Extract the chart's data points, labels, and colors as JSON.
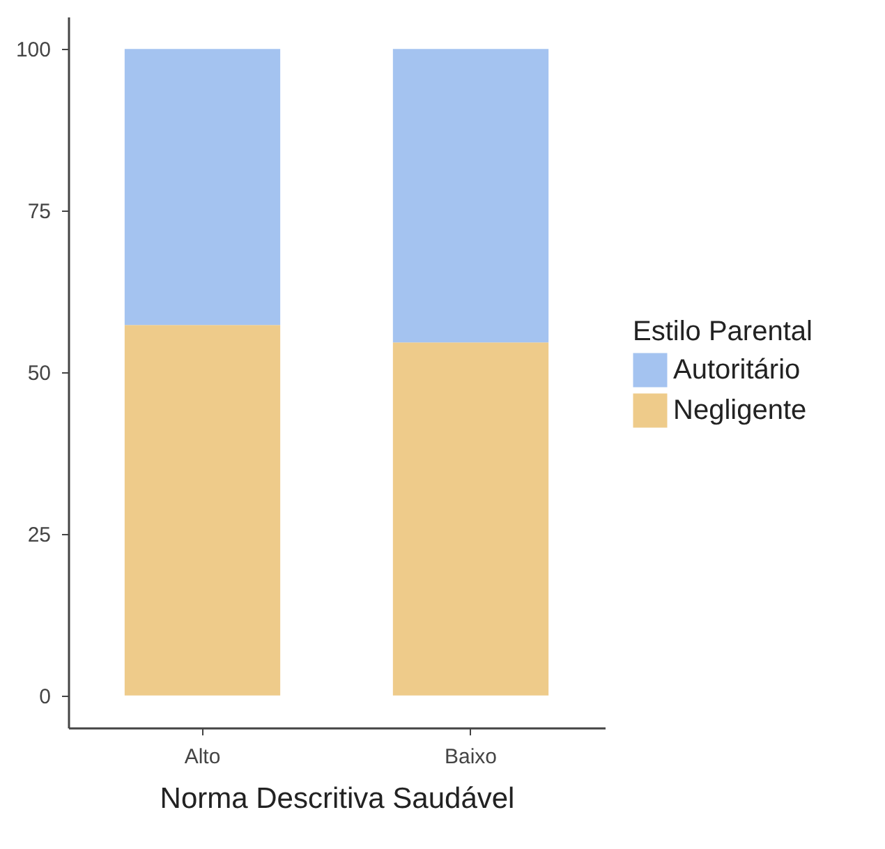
{
  "chart_data": {
    "type": "bar",
    "stacked": true,
    "xlabel": "Norma Descritiva Saudável",
    "legend_title": "Estilo Parental",
    "legend": "right",
    "categories": [
      "Alto",
      "Baixo"
    ],
    "series": [
      {
        "name": "Negligente",
        "color": "#eecb8a",
        "values": [
          57.3,
          54.6
        ]
      },
      {
        "name": "Autoritário",
        "color": "#a4c3f0",
        "values": [
          42.7,
          45.4
        ]
      }
    ],
    "ylim": [
      -5,
      105
    ],
    "yticks": [
      0,
      25,
      50,
      75,
      100
    ],
    "grid": false
  }
}
